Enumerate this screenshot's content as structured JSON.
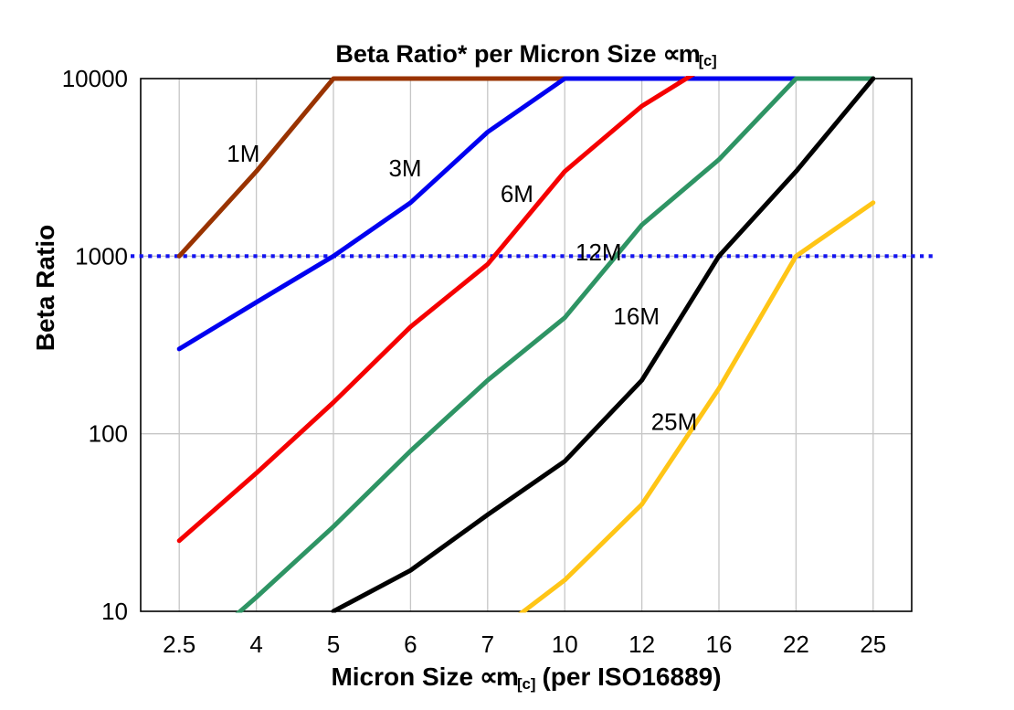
{
  "chart_data": {
    "type": "line",
    "title": {
      "text": "Beta Ratio* per Micron Size",
      "unit_symbol": "∝m",
      "unit_subscript": "[c]"
    },
    "y_axis": {
      "label": "Beta Ratio",
      "scale": "log",
      "lim": [
        10,
        10000
      ],
      "ticks": [
        "10",
        "100",
        "1000",
        "10000"
      ]
    },
    "x_axis": {
      "label_prefix": "Micron Size",
      "unit_symbol": "∝m",
      "unit_subscript": "[c]",
      "label_suffix": "(per ISO16889)",
      "categories": [
        "2.5",
        "4",
        "5",
        "6",
        "7",
        "10",
        "12",
        "16",
        "22",
        "25"
      ]
    },
    "grid": {
      "vertical": true,
      "horizontal_at": [
        100,
        1000
      ],
      "color": "#c6c6c6"
    },
    "reference_line": {
      "value": 1000,
      "style": "square-dotted",
      "color": "#1414f0"
    },
    "series": [
      {
        "name": "1M",
        "line_color": "#993300",
        "label_color": "#996633",
        "values": [
          1000,
          3000,
          10000,
          10000,
          10000,
          10000,
          null,
          null,
          null,
          null
        ],
        "label_fx": 0.133,
        "label_fy": 0.141
      },
      {
        "name": "3M",
        "line_color": "#0000f0",
        "label_color": "#0000f0",
        "values": [
          300,
          550,
          1000,
          2000,
          5000,
          10000,
          10000,
          10000,
          10000,
          null
        ],
        "label_fx": 0.343,
        "label_fy": 0.168
      },
      {
        "name": "6M",
        "line_color": "#f50000",
        "label_color": "#f50000",
        "values": [
          25,
          60,
          150,
          400,
          900,
          3000,
          7000,
          13000,
          null,
          null
        ],
        "label_fx": 0.488,
        "label_fy": 0.216
      },
      {
        "name": "12M",
        "line_color": "#2e9464",
        "label_color": "#1fa01f",
        "values": [
          5,
          12,
          30,
          80,
          200,
          450,
          1500,
          3500,
          10000,
          10000
        ],
        "label_fx": 0.594,
        "label_fy": 0.326
      },
      {
        "name": "16M",
        "line_color": "#000000",
        "label_color": "#000000",
        "values": [
          null,
          null,
          10,
          17,
          35,
          70,
          200,
          1000,
          3000,
          10000
        ],
        "label_fx": 0.643,
        "label_fy": 0.446
      },
      {
        "name": "25M",
        "line_color": "#ffc516",
        "label_color": "#ffc516",
        "values": [
          null,
          null,
          null,
          null,
          7,
          15,
          40,
          180,
          1000,
          2000
        ],
        "label_fx": 0.692,
        "label_fy": 0.644
      }
    ]
  }
}
